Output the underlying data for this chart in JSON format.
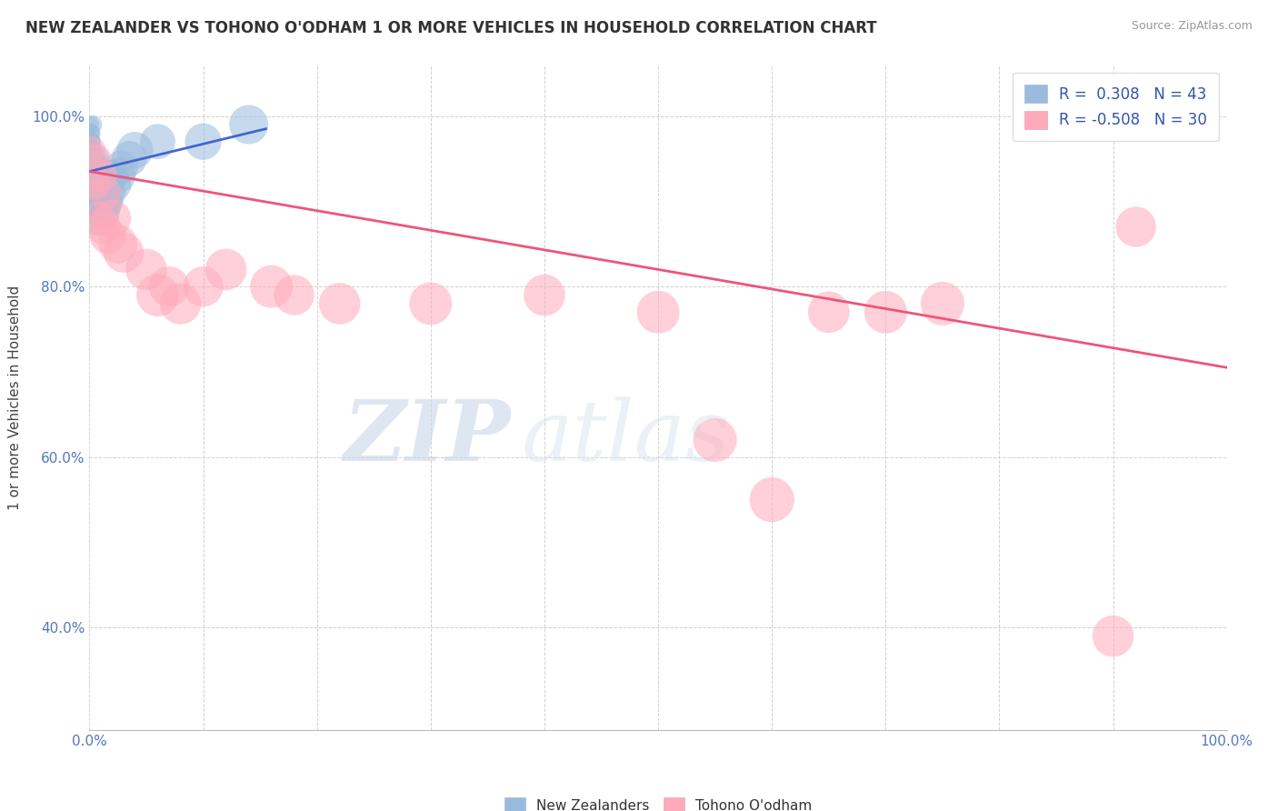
{
  "title": "NEW ZEALANDER VS TOHONO O'ODHAM 1 OR MORE VEHICLES IN HOUSEHOLD CORRELATION CHART",
  "source": "Source: ZipAtlas.com",
  "ylabel": "1 or more Vehicles in Household",
  "xlim": [
    0,
    1.0
  ],
  "ylim": [
    0.28,
    1.06
  ],
  "xticks": [
    0.0,
    0.1,
    0.2,
    0.3,
    0.4,
    0.5,
    0.6,
    0.7,
    0.8,
    0.9,
    1.0
  ],
  "yticks": [
    0.4,
    0.6,
    0.8,
    1.0
  ],
  "xtick_labels": [
    "0.0%",
    "",
    "",
    "",
    "",
    "",
    "",
    "",
    "",
    "",
    "100.0%"
  ],
  "ytick_labels": [
    "40.0%",
    "60.0%",
    "80.0%",
    "100.0%"
  ],
  "blue_R": 0.308,
  "blue_N": 43,
  "pink_R": -0.508,
  "pink_N": 30,
  "blue_color": "#99BBDD",
  "pink_color": "#FFAABB",
  "blue_line_color": "#4466CC",
  "pink_line_color": "#EE5577",
  "watermark_zip": "ZIP",
  "watermark_atlas": "atlas",
  "legend_label_blue": "New Zealanders",
  "legend_label_pink": "Tohono O'odham",
  "blue_scatter_x": [
    0.001,
    0.001,
    0.001,
    0.002,
    0.002,
    0.002,
    0.002,
    0.003,
    0.003,
    0.003,
    0.003,
    0.004,
    0.004,
    0.005,
    0.005,
    0.005,
    0.006,
    0.006,
    0.007,
    0.007,
    0.007,
    0.008,
    0.008,
    0.009,
    0.009,
    0.01,
    0.01,
    0.011,
    0.011,
    0.012,
    0.013,
    0.014,
    0.015,
    0.017,
    0.02,
    0.022,
    0.025,
    0.028,
    0.035,
    0.04,
    0.06,
    0.1,
    0.14
  ],
  "blue_scatter_y": [
    0.97,
    0.98,
    0.99,
    0.94,
    0.96,
    0.97,
    0.98,
    0.93,
    0.95,
    0.96,
    0.99,
    0.92,
    0.94,
    0.91,
    0.93,
    0.95,
    0.9,
    0.94,
    0.91,
    0.93,
    0.95,
    0.89,
    0.92,
    0.9,
    0.93,
    0.88,
    0.91,
    0.89,
    0.92,
    0.9,
    0.91,
    0.9,
    0.92,
    0.91,
    0.93,
    0.92,
    0.93,
    0.94,
    0.95,
    0.96,
    0.97,
    0.97,
    0.99
  ],
  "blue_scatter_size": [
    20,
    20,
    15,
    25,
    20,
    18,
    15,
    30,
    25,
    20,
    18,
    35,
    28,
    40,
    32,
    25,
    45,
    35,
    50,
    38,
    28,
    55,
    40,
    60,
    42,
    65,
    45,
    70,
    48,
    75,
    60,
    65,
    55,
    60,
    55,
    60,
    65,
    60,
    65,
    70,
    65,
    70,
    80
  ],
  "pink_scatter_x": [
    0.002,
    0.004,
    0.006,
    0.008,
    0.01,
    0.012,
    0.014,
    0.016,
    0.02,
    0.025,
    0.03,
    0.05,
    0.06,
    0.07,
    0.08,
    0.1,
    0.12,
    0.16,
    0.18,
    0.22,
    0.3,
    0.4,
    0.5,
    0.55,
    0.6,
    0.65,
    0.7,
    0.75,
    0.9,
    0.92
  ],
  "pink_scatter_y": [
    0.96,
    0.92,
    0.95,
    0.88,
    0.93,
    0.87,
    0.91,
    0.86,
    0.88,
    0.85,
    0.84,
    0.82,
    0.79,
    0.8,
    0.78,
    0.8,
    0.82,
    0.8,
    0.79,
    0.78,
    0.78,
    0.79,
    0.77,
    0.62,
    0.55,
    0.77,
    0.77,
    0.78,
    0.39,
    0.87
  ],
  "pink_scatter_size": [
    40,
    50,
    45,
    60,
    55,
    65,
    55,
    70,
    75,
    80,
    85,
    90,
    95,
    85,
    90,
    85,
    90,
    95,
    85,
    90,
    95,
    90,
    95,
    100,
    105,
    90,
    95,
    100,
    90,
    85
  ],
  "blue_trendline_x": [
    0.0,
    0.155
  ],
  "blue_trendline_y": [
    0.935,
    0.985
  ],
  "pink_trendline_x": [
    0.0,
    1.0
  ],
  "pink_trendline_y": [
    0.935,
    0.705
  ]
}
